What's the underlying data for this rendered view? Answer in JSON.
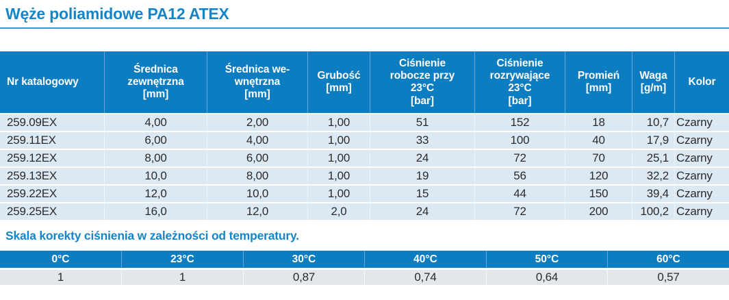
{
  "page": {
    "title": "Węże poliamidowe PA12 ATEX",
    "section2_title": "Skala korekty ciśnienia w zależności od temperatury."
  },
  "colors": {
    "header_blue": "#0d7dc1",
    "title_blue": "#1585c6",
    "rule_blue": "#3d97cb",
    "row_blue": "#dce9f3",
    "temp_row_gray": "#e2e7eb",
    "text_dark": "#2b2b2b"
  },
  "main_table": {
    "columns": [
      {
        "label_lines": [
          "Nr katalogowy"
        ]
      },
      {
        "label_lines": [
          "Średnica",
          "zewnętrzna",
          "[mm]"
        ]
      },
      {
        "label_lines": [
          "Średnica we-",
          "wnętrzna",
          "[mm]"
        ]
      },
      {
        "label_lines": [
          "Grubość",
          "[mm]"
        ]
      },
      {
        "label_lines": [
          "Ciśnienie",
          "robocze przy",
          "23°C",
          "[bar]"
        ]
      },
      {
        "label_lines": [
          "Ciśnienie",
          "rozrywające",
          "23°C",
          "[bar]"
        ]
      },
      {
        "label_lines": [
          "Promień",
          "[mm]"
        ]
      },
      {
        "label_lines": [
          "Waga",
          "[g/m]"
        ]
      },
      {
        "label_lines": [
          "Kolor"
        ]
      }
    ],
    "rows": [
      [
        "259.09EX",
        "4,00",
        "2,00",
        "1,00",
        "51",
        "152",
        "18",
        "10,7",
        "Czarny"
      ],
      [
        "259.11EX",
        "6,00",
        "4,00",
        "1,00",
        "33",
        "100",
        "40",
        "17,9",
        "Czarny"
      ],
      [
        "259.12EX",
        "8,00",
        "6,00",
        "1,00",
        "24",
        "72",
        "70",
        "25,1",
        "Czarny"
      ],
      [
        "259.13EX",
        "10,0",
        "8,00",
        "1,00",
        "19",
        "56",
        "120",
        "32,2",
        "Czarny"
      ],
      [
        "259.22EX",
        "12,0",
        "10,0",
        "1,00",
        "15",
        "44",
        "150",
        "39,4",
        "Czarny"
      ],
      [
        "259.25EX",
        "16,0",
        "12,0",
        "2,0",
        "24",
        "72",
        "200",
        "100,2",
        "Czarny"
      ]
    ]
  },
  "temp_table": {
    "headers": [
      "0°C",
      "23°C",
      "30°C",
      "40°C",
      "50°C",
      "60°C"
    ],
    "values": [
      "1",
      "1",
      "0,87",
      "0,74",
      "0,64",
      "0,57"
    ]
  }
}
